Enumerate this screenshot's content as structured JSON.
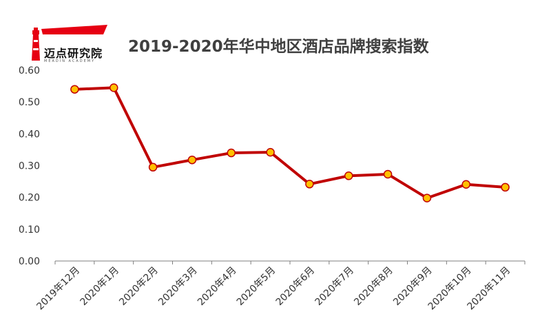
{
  "header": {
    "logo_text": "迈点研究院",
    "logo_subtext": "MEADIN ACADEMY"
  },
  "colors": {
    "line": "#c00000",
    "marker_fill": "#ffc000",
    "marker_edge": "#c00000",
    "axis": "#7f7f7f"
  },
  "chart_data": {
    "type": "line",
    "title": "2019-2020年华中地区酒店品牌搜索指数",
    "xlabel": "",
    "ylabel": "",
    "categories": [
      "2019年12月",
      "2020年1月",
      "2020年2月",
      "2020年3月",
      "2020年4月",
      "2020年5月",
      "2020年6月",
      "2020年7月",
      "2020年8月",
      "2020年9月",
      "2020年10月",
      "2020年11月"
    ],
    "series": [
      {
        "values": [
          0.54,
          0.545,
          0.295,
          0.318,
          0.34,
          0.342,
          0.242,
          0.268,
          0.273,
          0.198,
          0.241,
          0.232
        ]
      }
    ],
    "ylim": [
      0,
      0.6
    ],
    "yticks": [
      "0.00",
      "0.10",
      "0.20",
      "0.30",
      "0.40",
      "0.50",
      "0.60"
    ],
    "grid": false,
    "legend": "none"
  }
}
